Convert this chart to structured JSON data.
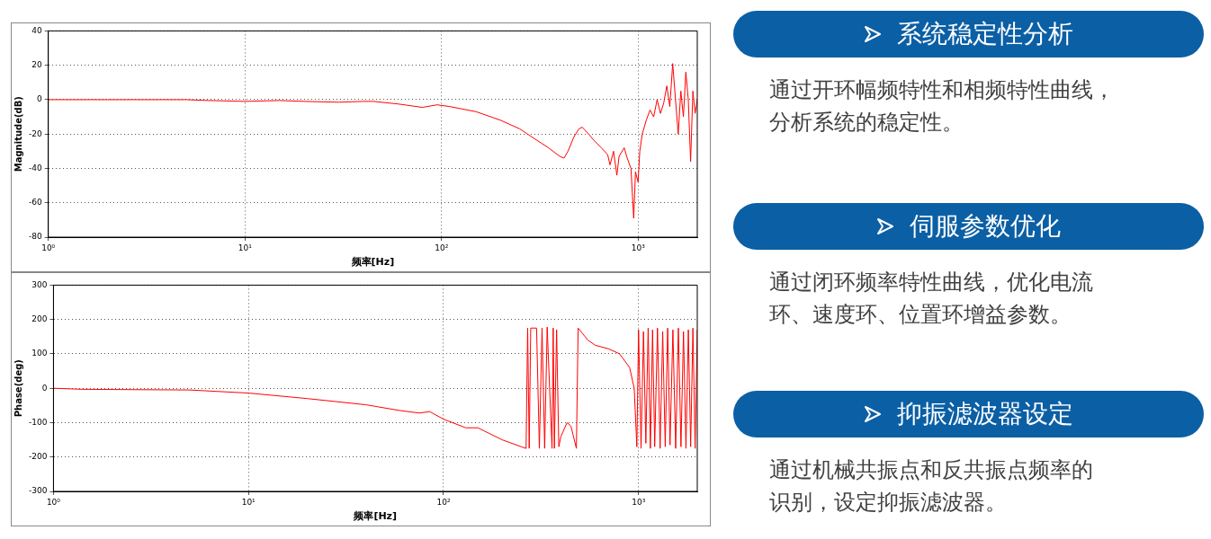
{
  "chart_data": [
    {
      "type": "line",
      "ylabel": "Magnitude(dB)",
      "xlabel": "频率[Hz]",
      "log": "x",
      "grid": true,
      "legend": false,
      "xlim": [
        1,
        2000
      ],
      "xticks": [
        {
          "value": 1,
          "label": "10⁰"
        },
        {
          "value": 10,
          "label": "10¹"
        },
        {
          "value": 100,
          "label": "10²"
        },
        {
          "value": 1000,
          "label": "10³"
        }
      ],
      "ylim": [
        -80,
        40
      ],
      "yticks": [
        -80,
        -60,
        -40,
        -20,
        0,
        20,
        40
      ],
      "series": [
        {
          "color": "#ff0000",
          "x": [
            1,
            2,
            5,
            6.5,
            10,
            15,
            20,
            30,
            40,
            45,
            60,
            80,
            95,
            110,
            150,
            200,
            250,
            300,
            350,
            400,
            420,
            440,
            470,
            500,
            520,
            560,
            600,
            650,
            700,
            720,
            750,
            780,
            800,
            850,
            880,
            920,
            950,
            970,
            1000,
            1020,
            1050,
            1100,
            1150,
            1200,
            1250,
            1300,
            1350,
            1400,
            1450,
            1500,
            1550,
            1600,
            1650,
            1700,
            1750,
            1800,
            1850,
            1900,
            1950,
            2000
          ],
          "values": [
            0,
            0,
            0,
            -0.5,
            -1,
            -0.5,
            -1,
            -1.5,
            -1,
            -1,
            -2.5,
            -4.5,
            -3,
            -4,
            -7,
            -12,
            -17,
            -23,
            -28,
            -33,
            -34,
            -30,
            -22,
            -17,
            -16,
            -20,
            -24,
            -28,
            -32,
            -38,
            -30,
            -44,
            -33,
            -28,
            -34,
            -40,
            -69,
            -42,
            -48,
            -30,
            -20,
            -12,
            -6,
            -10,
            0,
            -8,
            -2,
            8,
            -4,
            21,
            0,
            -20,
            5,
            -10,
            16,
            0,
            -36,
            5,
            -8,
            0
          ]
        }
      ]
    },
    {
      "type": "line",
      "ylabel": "Phase(deg)",
      "xlabel": "频率[Hz]",
      "log": "x",
      "grid": true,
      "legend": false,
      "xlim": [
        1,
        2000
      ],
      "xticks": [
        {
          "value": 1,
          "label": "10⁰"
        },
        {
          "value": 10,
          "label": "10¹"
        },
        {
          "value": 100,
          "label": "10²"
        },
        {
          "value": 1000,
          "label": "10³"
        }
      ],
      "ylim": [
        -300,
        300
      ],
      "yticks": [
        -300,
        -200,
        -100,
        0,
        100,
        200,
        300
      ],
      "series": [
        {
          "color": "#ff0000",
          "x": [
            1,
            1.4,
            5,
            10,
            20,
            40,
            60,
            75,
            85,
            100,
            130,
            150,
            200,
            250,
            265,
            270,
            275,
            280,
            300,
            310,
            320,
            330,
            340,
            360,
            365,
            370,
            380,
            390,
            400,
            430,
            450,
            480,
            490,
            550,
            600,
            700,
            800,
            900,
            950,
            980,
            1000,
            1030,
            1060,
            1090,
            1120,
            1150,
            1180,
            1210,
            1250,
            1290,
            1330,
            1370,
            1410,
            1450,
            1500,
            1550,
            1600,
            1650,
            1700,
            1750,
            1800,
            1850,
            1900,
            1950,
            2000
          ],
          "values": [
            0,
            -3,
            -5,
            -14,
            -30,
            -48,
            -65,
            -72,
            -68,
            -90,
            -115,
            -115,
            -150,
            -170,
            -175,
            175,
            -175,
            175,
            175,
            -175,
            175,
            -175,
            178,
            -175,
            175,
            -175,
            170,
            -170,
            -140,
            -100,
            -110,
            -175,
            175,
            140,
            125,
            115,
            100,
            60,
            0,
            -170,
            170,
            -175,
            165,
            -160,
            175,
            -175,
            170,
            -170,
            175,
            -175,
            165,
            -170,
            175,
            -165,
            170,
            -175,
            175,
            -170,
            165,
            -175,
            170,
            -170,
            175,
            -175,
            170
          ]
        }
      ]
    },
    {
      "type": "other",
      "title": "系统稳定性分析",
      "annotations": [
        "通过开环幅频特性和相频特性曲线，",
        "分析系统的稳定性。"
      ]
    },
    {
      "type": "other",
      "title": "伺服参数优化",
      "annotations": [
        "通过闭环频率特性曲线，优化电流",
        "环、速度环、位置环增益参数。"
      ]
    },
    {
      "type": "other",
      "title": "抑振滤波器设定",
      "annotations": [
        "通过机械共振点和反共振点频率的",
        "识别，设定抑振滤波器。"
      ]
    }
  ]
}
